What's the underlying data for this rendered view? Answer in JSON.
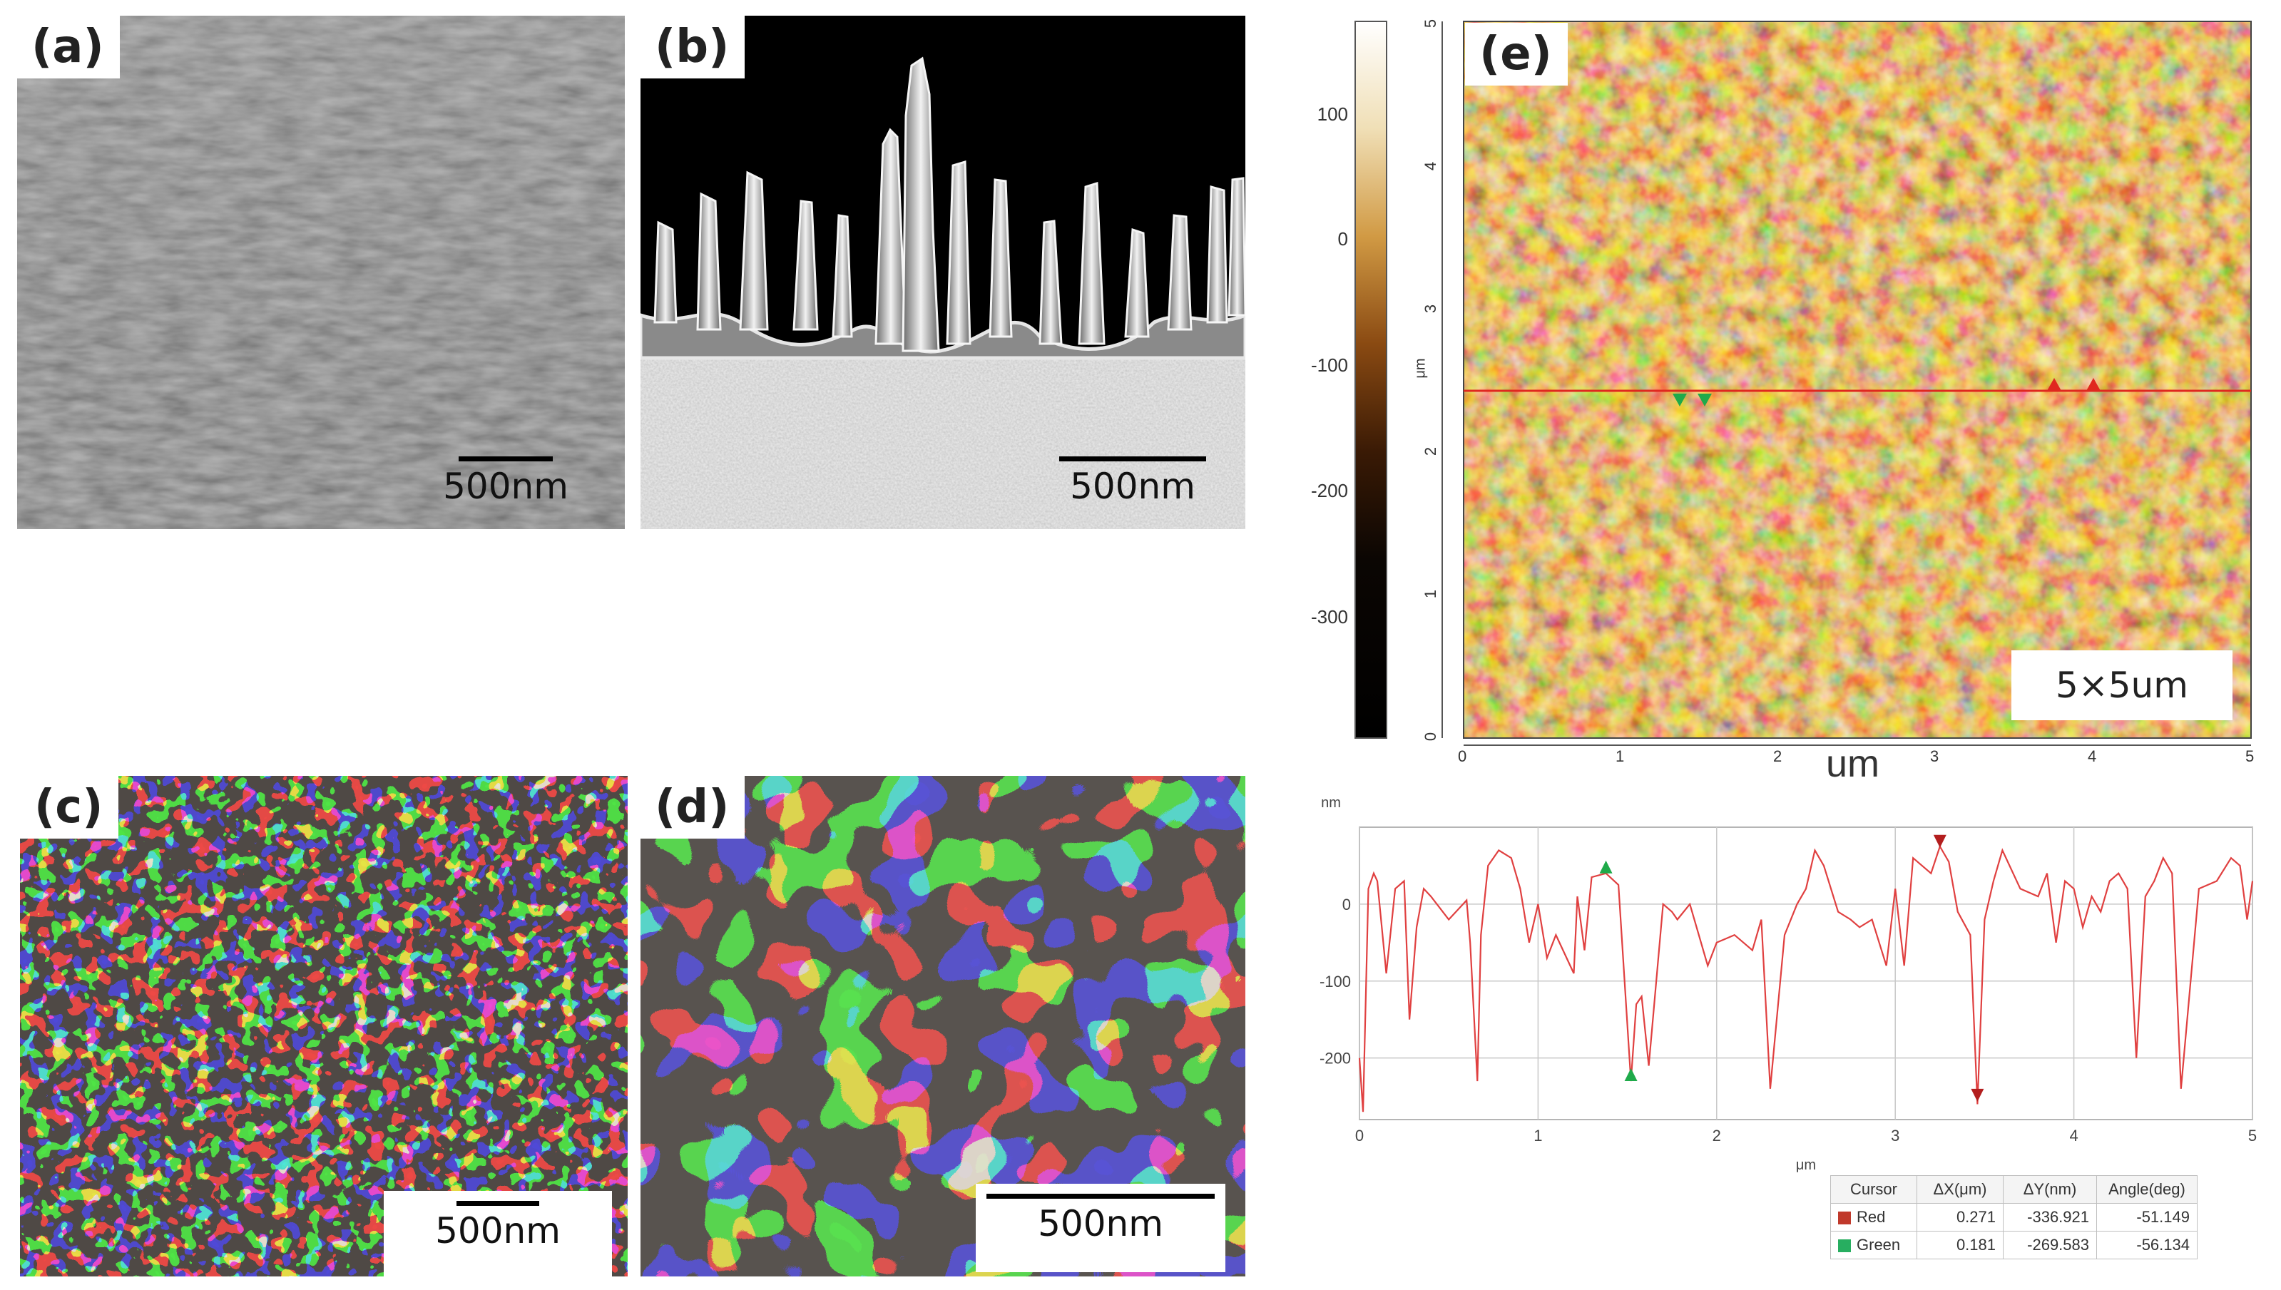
{
  "panels": {
    "a": {
      "label": "(a)",
      "scale_bar": "500nm"
    },
    "b": {
      "label": "(b)",
      "scale_bar": "500nm"
    },
    "c": {
      "label": "(c)",
      "scale_bar": "500nm"
    },
    "d": {
      "label": "(d)",
      "scale_bar": "500nm"
    },
    "e": {
      "label": "(e)",
      "size_label": "5×5um"
    }
  },
  "afm_image": {
    "colorbar_ticks": [
      "100",
      "0",
      "-100",
      "-200",
      "-300"
    ],
    "y_axis_label": "μm",
    "y_ticks": [
      "5",
      "4",
      "3",
      "2",
      "1",
      "0"
    ],
    "x_ticks": [
      "0",
      "1",
      "2",
      "3",
      "4",
      "5"
    ],
    "x_axis_label": "um",
    "colors": {
      "light": "#f6e7c4",
      "mid": "#c98a2e",
      "dark": "#5a2a05",
      "line": "#e0281f"
    }
  },
  "chart_data": {
    "type": "line",
    "title": "",
    "xlabel": "μm",
    "ylabel": "nm",
    "xlim": [
      0,
      5
    ],
    "ylim": [
      -280,
      100
    ],
    "x_ticks": [
      "0",
      "1",
      "2",
      "3",
      "4",
      "5"
    ],
    "y_ticks": [
      "0",
      "-100",
      "-200"
    ],
    "grid": true,
    "series": [
      {
        "color": "#e04040",
        "x": [
          0,
          0.02,
          0.05,
          0.08,
          0.1,
          0.15,
          0.2,
          0.25,
          0.28,
          0.32,
          0.36,
          0.4,
          0.5,
          0.6,
          0.62,
          0.66,
          0.68,
          0.72,
          0.78,
          0.85,
          0.9,
          0.95,
          1.0,
          1.05,
          1.1,
          1.2,
          1.22,
          1.26,
          1.3,
          1.38,
          1.45,
          1.52,
          1.55,
          1.58,
          1.62,
          1.7,
          1.75,
          1.78,
          1.85,
          1.95,
          2.0,
          2.1,
          2.2,
          2.25,
          2.3,
          2.38,
          2.45,
          2.5,
          2.55,
          2.6,
          2.68,
          2.75,
          2.8,
          2.87,
          2.95,
          3.0,
          3.05,
          3.1,
          3.2,
          3.25,
          3.3,
          3.35,
          3.42,
          3.46,
          3.5,
          3.55,
          3.6,
          3.7,
          3.8,
          3.85,
          3.9,
          3.95,
          4.0,
          4.05,
          4.1,
          4.15,
          4.2,
          4.25,
          4.3,
          4.35,
          4.4,
          4.45,
          4.5,
          4.55,
          4.6,
          4.7,
          4.8,
          4.88,
          4.93,
          4.97,
          5.0
        ],
        "y": [
          -200,
          -270,
          20,
          40,
          30,
          -90,
          20,
          30,
          -150,
          -30,
          20,
          10,
          -20,
          5,
          -50,
          -230,
          -40,
          50,
          70,
          60,
          20,
          -50,
          0,
          -70,
          -40,
          -90,
          10,
          -60,
          35,
          40,
          25,
          -230,
          -130,
          -120,
          -210,
          0,
          -10,
          -20,
          0,
          -80,
          -50,
          -40,
          -60,
          -20,
          -240,
          -40,
          0,
          20,
          70,
          50,
          -10,
          -20,
          -30,
          -20,
          -80,
          20,
          -80,
          60,
          40,
          75,
          55,
          -10,
          -40,
          -260,
          -20,
          30,
          70,
          20,
          10,
          40,
          -50,
          30,
          20,
          -30,
          10,
          -10,
          30,
          40,
          20,
          -200,
          10,
          30,
          60,
          40,
          -240,
          20,
          30,
          60,
          50,
          -20,
          30
        ]
      }
    ],
    "cursors": [
      {
        "name": "Red",
        "color": "#c0392b",
        "dx_um": "0.271",
        "dy_nm": "-336.921",
        "angle_deg": "-51.149"
      },
      {
        "name": "Green",
        "color": "#27ae60",
        "dx_um": "0.181",
        "dy_nm": "-269.583",
        "angle_deg": "-56.134"
      }
    ],
    "table_headers": [
      "Cursor",
      "ΔX(μm)",
      "ΔY(nm)",
      "Angle(deg)"
    ]
  }
}
